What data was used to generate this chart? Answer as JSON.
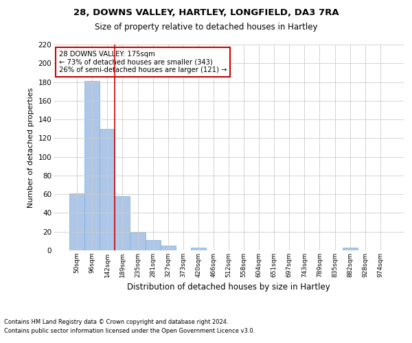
{
  "title1": "28, DOWNS VALLEY, HARTLEY, LONGFIELD, DA3 7RA",
  "title2": "Size of property relative to detached houses in Hartley",
  "xlabel": "Distribution of detached houses by size in Hartley",
  "ylabel": "Number of detached properties",
  "annotation_line1": "28 DOWNS VALLEY: 175sqm",
  "annotation_line2": "← 73% of detached houses are smaller (343)",
  "annotation_line3": "26% of semi-detached houses are larger (121) →",
  "categories": [
    "50sqm",
    "96sqm",
    "142sqm",
    "189sqm",
    "235sqm",
    "281sqm",
    "327sqm",
    "373sqm",
    "420sqm",
    "466sqm",
    "512sqm",
    "558sqm",
    "604sqm",
    "651sqm",
    "697sqm",
    "743sqm",
    "789sqm",
    "835sqm",
    "882sqm",
    "928sqm",
    "974sqm"
  ],
  "values": [
    61,
    181,
    130,
    58,
    19,
    11,
    5,
    0,
    3,
    0,
    0,
    0,
    0,
    0,
    0,
    0,
    0,
    0,
    3,
    0,
    0
  ],
  "bar_color": "#aec6e8",
  "bar_edge_color": "#7aadd4",
  "vline_x": 2.5,
  "vline_color": "#cc0000",
  "annotation_box_color": "#cc0000",
  "ylim": [
    0,
    220
  ],
  "yticks": [
    0,
    20,
    40,
    60,
    80,
    100,
    120,
    140,
    160,
    180,
    200,
    220
  ],
  "grid_color": "#cccccc",
  "bg_color": "#ffffff",
  "footer1": "Contains HM Land Registry data © Crown copyright and database right 2024.",
  "footer2": "Contains public sector information licensed under the Open Government Licence v3.0."
}
